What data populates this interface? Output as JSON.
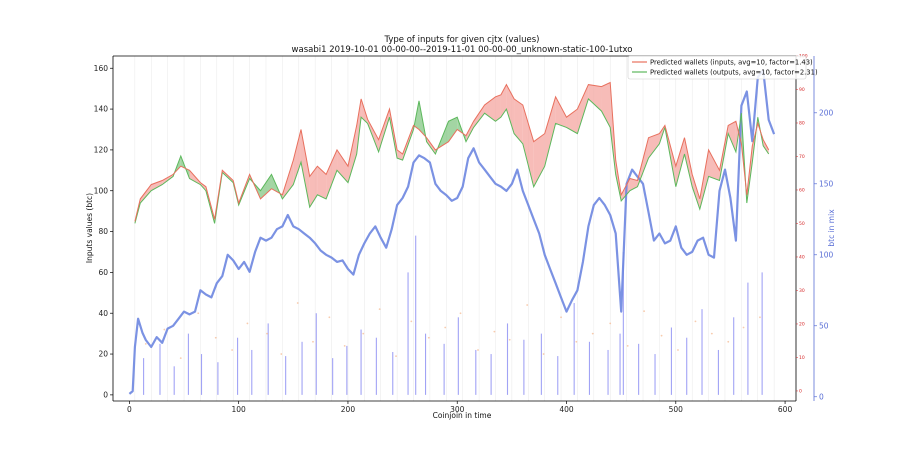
{
  "chart_data": {
    "type": "line",
    "title": "Type of inputs for given cjtx (values)",
    "subtitle": "wasabi1 2019-10-01 00-00-00--2019-11-01 00-00-00_unknown-static-100-1utxo",
    "xlabel": "Coinjoin in time",
    "ylabel": "Inputs values (btc)",
    "y2label": "btc in mix",
    "xlim": [
      -15,
      610
    ],
    "ylim": [
      -3,
      166
    ],
    "y2lim": [
      -3,
      240
    ],
    "y3lim": [
      -3,
      100
    ],
    "xticks": [
      "0",
      "100",
      "200",
      "300",
      "400",
      "500",
      "600"
    ],
    "yticks": [
      "0",
      "20",
      "40",
      "60",
      "80",
      "100",
      "120",
      "140",
      "160"
    ],
    "y2ticks": [
      "0",
      "50",
      "100",
      "150",
      "200"
    ],
    "y3ticks": [
      "0",
      "10",
      "20",
      "30",
      "40",
      "50",
      "60",
      "70",
      "80",
      "90",
      "100"
    ],
    "grid": "vertical",
    "legend_position": "top-right",
    "colors": {
      "inputs": "#e8705e",
      "outputs": "#5cb85c",
      "fill_red": "#f4a6a0",
      "fill_green": "#84c784",
      "btc_in_mix": "#6d86e0",
      "spikes": "#8a8cf2",
      "dots": "#f5b58a",
      "red_axis": "#d62728",
      "blue_axis": "#5a6fd6"
    },
    "series": [
      {
        "name": "Predicted wallets (inputs, avg=10, factor=1.43)",
        "x": [
          5,
          10,
          20,
          30,
          40,
          47,
          55,
          65,
          70,
          78,
          85,
          95,
          100,
          110,
          120,
          130,
          140,
          150,
          157,
          165,
          172,
          180,
          190,
          200,
          208,
          212,
          218,
          228,
          238,
          245,
          250,
          260,
          265,
          272,
          280,
          292,
          300,
          308,
          315,
          325,
          335,
          340,
          345,
          352,
          360,
          370,
          380,
          390,
          400,
          410,
          420,
          432,
          440,
          445,
          450,
          458,
          465,
          475,
          485,
          490,
          500,
          508,
          515,
          522,
          530,
          540,
          548,
          555,
          560,
          565,
          570,
          575,
          580,
          585
        ],
        "values": [
          85,
          96,
          103,
          105,
          108,
          112,
          110,
          104,
          102,
          86,
          110,
          105,
          94,
          108,
          96,
          101,
          98,
          115,
          130,
          107,
          112,
          108,
          120,
          112,
          132,
          145,
          135,
          125,
          140,
          120,
          118,
          132,
          130,
          126,
          120,
          124,
          130,
          127,
          134,
          142,
          146,
          147,
          152,
          145,
          142,
          124,
          128,
          146,
          136,
          140,
          152,
          151,
          153,
          115,
          98,
          106,
          105,
          126,
          128,
          132,
          112,
          126,
          108,
          96,
          120,
          110,
          132,
          134,
          123,
          98,
          122,
          133,
          125,
          120
        ]
      },
      {
        "name": "Predicted wallets (outputs, avg=10, factor=2.31)",
        "x": [
          5,
          10,
          20,
          30,
          40,
          47,
          55,
          65,
          70,
          78,
          85,
          95,
          100,
          110,
          120,
          130,
          140,
          150,
          157,
          165,
          172,
          180,
          190,
          200,
          208,
          212,
          218,
          228,
          238,
          245,
          250,
          260,
          265,
          272,
          280,
          292,
          300,
          308,
          315,
          325,
          335,
          340,
          345,
          352,
          360,
          370,
          380,
          390,
          400,
          410,
          420,
          432,
          440,
          445,
          450,
          458,
          465,
          475,
          485,
          490,
          500,
          508,
          515,
          522,
          530,
          540,
          548,
          555,
          560,
          565,
          570,
          575,
          580,
          585
        ],
        "values": [
          84,
          94,
          100,
          103,
          107,
          117,
          106,
          103,
          100,
          84,
          109,
          104,
          93,
          106,
          100,
          108,
          96,
          103,
          114,
          92,
          98,
          96,
          110,
          104,
          118,
          136,
          133,
          119,
          136,
          116,
          115,
          130,
          144,
          124,
          118,
          134,
          136,
          124,
          131,
          138,
          134,
          136,
          140,
          128,
          123,
          102,
          112,
          133,
          131,
          128,
          145,
          139,
          131,
          108,
          95,
          100,
          102,
          116,
          123,
          131,
          102,
          118,
          102,
          91,
          107,
          105,
          128,
          119,
          138,
          94,
          114,
          136,
          122,
          118
        ]
      },
      {
        "name": "btc in mix",
        "axis": "right",
        "x": [
          0,
          3,
          5,
          8,
          12,
          15,
          20,
          25,
          30,
          35,
          40,
          45,
          50,
          55,
          60,
          65,
          70,
          75,
          80,
          85,
          90,
          95,
          100,
          105,
          110,
          115,
          120,
          125,
          130,
          135,
          140,
          145,
          150,
          155,
          160,
          165,
          170,
          175,
          180,
          185,
          190,
          195,
          200,
          205,
          210,
          215,
          220,
          225,
          230,
          235,
          240,
          245,
          250,
          255,
          260,
          265,
          270,
          275,
          280,
          285,
          290,
          295,
          300,
          305,
          310,
          315,
          320,
          325,
          330,
          335,
          340,
          345,
          350,
          355,
          360,
          365,
          370,
          375,
          380,
          385,
          390,
          395,
          400,
          405,
          410,
          415,
          420,
          425,
          430,
          435,
          440,
          445,
          450,
          455,
          460,
          465,
          470,
          475,
          480,
          485,
          490,
          495,
          500,
          505,
          510,
          515,
          520,
          525,
          530,
          535,
          540,
          545,
          550,
          555,
          560,
          565,
          570,
          575,
          580,
          585,
          590
        ],
        "values": [
          2,
          4,
          35,
          55,
          45,
          40,
          35,
          42,
          38,
          48,
          50,
          55,
          60,
          58,
          60,
          75,
          72,
          70,
          80,
          85,
          100,
          96,
          90,
          95,
          88,
          102,
          112,
          110,
          112,
          118,
          120,
          128,
          120,
          118,
          115,
          112,
          108,
          103,
          100,
          98,
          95,
          96,
          90,
          86,
          100,
          108,
          115,
          120,
          112,
          105,
          118,
          135,
          140,
          148,
          165,
          170,
          168,
          165,
          150,
          145,
          142,
          138,
          140,
          148,
          168,
          175,
          165,
          160,
          155,
          150,
          148,
          145,
          150,
          160,
          145,
          135,
          125,
          115,
          100,
          90,
          80,
          70,
          60,
          68,
          75,
          95,
          120,
          135,
          140,
          135,
          128,
          115,
          60,
          150,
          160,
          155,
          150,
          130,
          110,
          115,
          108,
          110,
          120,
          105,
          100,
          102,
          110,
          112,
          100,
          98,
          145,
          160,
          140,
          110,
          205,
          215,
          180,
          225,
          230,
          195,
          185
        ]
      }
    ],
    "spikes": {
      "x": [
        13,
        28,
        41,
        54,
        66,
        81,
        99,
        112,
        127,
        143,
        158,
        171,
        186,
        199,
        212,
        226,
        241,
        255,
        262,
        271,
        288,
        301,
        317,
        331,
        346,
        361,
        377,
        392,
        407,
        421,
        438,
        449,
        452,
        466,
        481,
        496,
        510,
        524,
        539,
        553,
        566,
        579
      ],
      "values": [
        18,
        25,
        14,
        30,
        20,
        16,
        28,
        22,
        35,
        19,
        26,
        40,
        18,
        24,
        32,
        28,
        21,
        60,
        78,
        30,
        25,
        38,
        22,
        20,
        35,
        27,
        30,
        19,
        45,
        26,
        22,
        30,
        70,
        25,
        20,
        33,
        28,
        42,
        22,
        38,
        55,
        60
      ]
    },
    "dots": {
      "x": [
        15,
        32,
        47,
        63,
        79,
        94,
        108,
        126,
        139,
        154,
        168,
        183,
        197,
        214,
        229,
        244,
        258,
        274,
        289,
        303,
        319,
        334,
        348,
        364,
        379,
        395,
        409,
        424,
        440,
        456,
        471,
        487,
        502,
        518,
        533,
        548,
        562,
        577
      ],
      "values": [
        25,
        32,
        18,
        40,
        28,
        22,
        35,
        30,
        20,
        45,
        26,
        38,
        24,
        30,
        42,
        19,
        36,
        28,
        33,
        40,
        22,
        31,
        27,
        44,
        20,
        38,
        26,
        30,
        35,
        24,
        41,
        29,
        22,
        36,
        30,
        26,
        33,
        38
      ]
    },
    "legend": [
      "Predicted wallets (inputs, avg=10, factor=1.43)",
      "Predicted wallets (outputs, avg=10, factor=2.31)"
    ]
  }
}
